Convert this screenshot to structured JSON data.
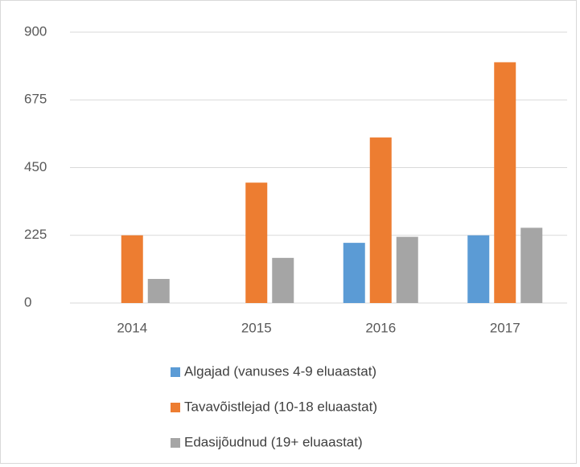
{
  "chart_data": {
    "type": "bar",
    "categories": [
      "2014",
      "2015",
      "2016",
      "2017"
    ],
    "series": [
      {
        "name": "Algajad (vanuses 4-9 eluaastat)",
        "color": "#5b9bd5",
        "values": [
          null,
          null,
          200,
          225
        ]
      },
      {
        "name": "Tavavõistlejad (10-18 eluaastat)",
        "color": "#ed7d31",
        "values": [
          225,
          400,
          550,
          800
        ]
      },
      {
        "name": "Edasijõudnud (19+ eluaastat)",
        "color": "#a5a5a5",
        "values": [
          80,
          150,
          220,
          250
        ]
      }
    ],
    "ylim": [
      0,
      900
    ],
    "yticks": [
      0,
      225,
      450,
      675,
      900
    ],
    "grid": true,
    "legend": "bottom"
  }
}
